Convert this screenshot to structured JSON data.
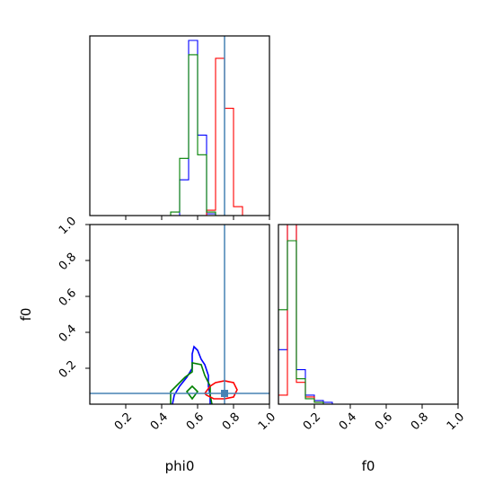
{
  "chart_data": {
    "type": "corner",
    "parameters": [
      "phi0",
      "f0"
    ],
    "labels": {
      "x_phi0": "phi0",
      "x_f0": "f0",
      "y_f0": "f0"
    },
    "truth": {
      "phi0": 0.75,
      "f0": 0.06
    },
    "colors": {
      "truth": "#4682b4",
      "series": [
        "#0000ff",
        "#ff0000",
        "#008000"
      ]
    },
    "axes": {
      "phi0": {
        "range": [
          0,
          1
        ],
        "ticks": [
          0.2,
          0.4,
          0.6,
          0.8,
          1.0
        ],
        "tick_labels": [
          "0.2",
          "0.4",
          "0.6",
          "0.8",
          "1.0"
        ]
      },
      "f0": {
        "range": [
          0,
          1
        ],
        "ticks": [
          0.2,
          0.4,
          0.6,
          0.8,
          1.0
        ],
        "tick_labels": [
          "0.2",
          "0.4",
          "0.6",
          "0.8",
          "1.0"
        ]
      }
    },
    "hist_phi0": {
      "bin_edges": [
        0.4,
        0.45,
        0.5,
        0.55,
        0.6,
        0.65,
        0.7,
        0.75,
        0.8,
        0.85
      ],
      "series": [
        {
          "color": "#0000ff",
          "values": [
            0,
            0,
            0.2,
            0.98,
            0.45,
            0.01,
            0,
            0,
            0
          ]
        },
        {
          "color": "#ff0000",
          "values": [
            0,
            0,
            0,
            0,
            0,
            0.03,
            0.88,
            0.6,
            0.05
          ]
        },
        {
          "color": "#008000",
          "values": [
            0,
            0.02,
            0.32,
            0.9,
            0.34,
            0.02,
            0,
            0,
            0
          ]
        }
      ]
    },
    "hist_f0": {
      "bin_edges": [
        0,
        0.05,
        0.1,
        0.15,
        0.2,
        0.25,
        0.3,
        0.35
      ],
      "series": [
        {
          "color": "#0000ff",
          "values": [
            0.3,
            1.2,
            0.19,
            0.05,
            0.02,
            0.01,
            0
          ]
        },
        {
          "color": "#ff0000",
          "values": [
            0.05,
            1.0,
            0.12,
            0.04,
            0.01,
            0,
            0
          ]
        },
        {
          "color": "#008000",
          "values": [
            0.52,
            0.9,
            0.14,
            0.03,
            0.01,
            0,
            0
          ]
        }
      ]
    },
    "contours": [
      {
        "color": "#0000ff",
        "points": [
          [
            0.46,
            0
          ],
          [
            0.47,
            0.05
          ],
          [
            0.5,
            0.1
          ],
          [
            0.54,
            0.15
          ],
          [
            0.57,
            0.2
          ],
          [
            0.57,
            0.28
          ],
          [
            0.58,
            0.32
          ],
          [
            0.6,
            0.3
          ],
          [
            0.62,
            0.25
          ],
          [
            0.64,
            0.22
          ],
          [
            0.66,
            0.16
          ],
          [
            0.66,
            0.1
          ],
          [
            0.67,
            0.05
          ],
          [
            0.67,
            0
          ]
        ]
      },
      {
        "color": "#008000",
        "points": [
          [
            0.45,
            0
          ],
          [
            0.45,
            0.07
          ],
          [
            0.49,
            0.11
          ],
          [
            0.53,
            0.15
          ],
          [
            0.57,
            0.18
          ],
          [
            0.57,
            0.23
          ],
          [
            0.62,
            0.22
          ],
          [
            0.64,
            0.16
          ],
          [
            0.67,
            0.1
          ],
          [
            0.67,
            0.05
          ],
          [
            0.68,
            0
          ]
        ]
      },
      {
        "color": "#008000",
        "closed": true,
        "points": [
          [
            0.54,
            0.07
          ],
          [
            0.57,
            0.1
          ],
          [
            0.6,
            0.07
          ],
          [
            0.57,
            0.03
          ]
        ]
      },
      {
        "color": "#ff0000",
        "closed": true,
        "points": [
          [
            0.64,
            0.06
          ],
          [
            0.67,
            0.1
          ],
          [
            0.7,
            0.12
          ],
          [
            0.75,
            0.13
          ],
          [
            0.8,
            0.12
          ],
          [
            0.82,
            0.08
          ],
          [
            0.8,
            0.04
          ],
          [
            0.75,
            0.03
          ],
          [
            0.69,
            0.03
          ],
          [
            0.65,
            0.05
          ]
        ]
      }
    ]
  }
}
